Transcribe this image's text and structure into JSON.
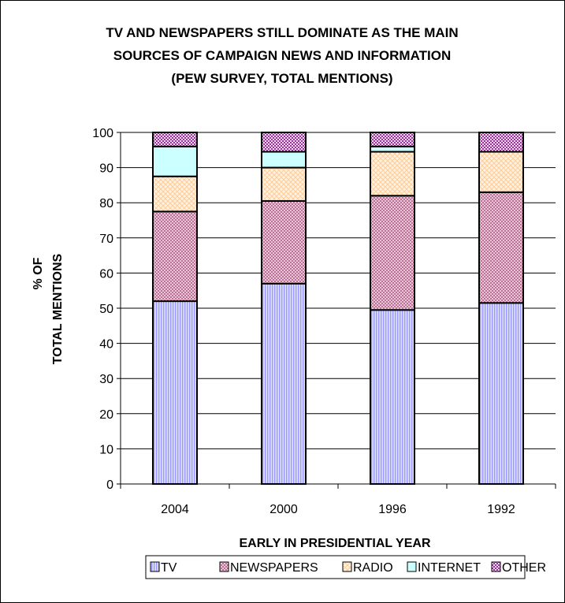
{
  "chart_data": {
    "type": "bar",
    "stacked": true,
    "title": [
      "TV AND NEWSPAPERS STILL DOMINATE AS THE MAIN",
      "SOURCES OF CAMPAIGN NEWS AND INFORMATION",
      "(PEW SURVEY, TOTAL MENTIONS)"
    ],
    "xlabel": "EARLY IN PRESIDENTIAL YEAR",
    "ylabel": [
      "% OF",
      "TOTAL MENTIONS"
    ],
    "categories": [
      "2004",
      "2000",
      "1996",
      "1992"
    ],
    "ylim": [
      0,
      100
    ],
    "yticks": [
      "0",
      "10",
      "20",
      "30",
      "40",
      "50",
      "60",
      "70",
      "80",
      "90",
      "100"
    ],
    "grid": true,
    "legend_position": "bottom",
    "series": [
      {
        "name": "TV",
        "values": [
          52,
          57,
          49.5,
          51.5
        ],
        "color": "#9999ff",
        "pattern": "vlines"
      },
      {
        "name": "NEWSPAPERS",
        "values": [
          25.5,
          23.5,
          32.5,
          31.5
        ],
        "color": "#993366",
        "pattern": "dots"
      },
      {
        "name": "RADIO",
        "values": [
          10,
          9.5,
          12.5,
          11.5
        ],
        "color": "#ffcc99",
        "pattern": "grid"
      },
      {
        "name": "INTERNET",
        "values": [
          8.5,
          4.5,
          1.5,
          0
        ],
        "color": "#ccffff",
        "pattern": "solid"
      },
      {
        "name": "OTHER",
        "values": [
          4,
          5.5,
          4,
          5.5
        ],
        "color": "#993399",
        "pattern": "checks"
      }
    ]
  }
}
